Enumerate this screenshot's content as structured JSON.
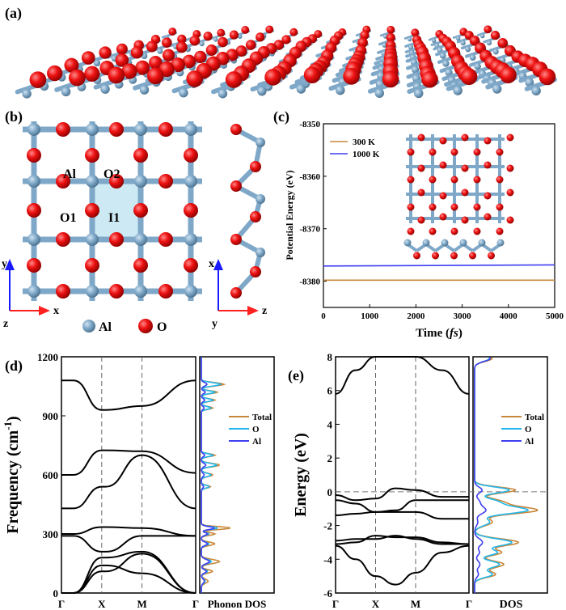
{
  "panels": {
    "a": "(a)",
    "b": "(b)",
    "c": "(c)",
    "d": "(d)",
    "e": "(e)"
  },
  "structure_b": {
    "site_labels": {
      "al": "Al",
      "o2": "O2",
      "o1": "O1",
      "i1": "I1"
    },
    "legend": {
      "al": "Al",
      "o": "O"
    },
    "axes_top": {
      "vertical": "y",
      "horizontal": "x",
      "origin": "z"
    },
    "axes_side": {
      "vertical": "x",
      "horizontal": "z",
      "origin": "y"
    },
    "colors": {
      "al": "#7fa8c8",
      "o": "#e8141b",
      "cell": "#cdeaf4"
    }
  },
  "chart_data": [
    {
      "panel": "c",
      "type": "line",
      "xlabel": "Time (fs)",
      "ylabel": "Potential Energy (eV)",
      "xlim": [
        0,
        5000
      ],
      "ylim": [
        -8385,
        -8350
      ],
      "xticks": [
        0,
        1000,
        2000,
        3000,
        4000,
        5000
      ],
      "yticks": [
        -8350,
        -8360,
        -8370,
        -8380
      ],
      "series": [
        {
          "name": "300 K",
          "color": "#c8873a",
          "x": [
            0,
            5000
          ],
          "y": [
            -8379.8,
            -8379.8
          ]
        },
        {
          "name": "1000 K",
          "color": "#3f3ff0",
          "x": [
            0,
            5000
          ],
          "y": [
            -8377.1,
            -8376.9
          ]
        }
      ],
      "legend_position": "top-left"
    },
    {
      "panel": "d",
      "type": "line",
      "ylabel": "Frequency (cm-1)",
      "ylabel_parts": {
        "main": "Frequency (cm",
        "sup": "-1",
        "end": ")"
      },
      "ylim": [
        0,
        1200
      ],
      "yticks": [
        0,
        300,
        600,
        900,
        1200
      ],
      "xtick_labels": [
        "Γ",
        "X",
        "M",
        "Γ"
      ],
      "dos_label": "Phonon DOS",
      "legend": [
        "Total",
        "O",
        "Al"
      ],
      "series_colors": {
        "Total": "#c8873a",
        "O": "#22b7ea",
        "Al": "#3f3ff0"
      },
      "band_segments": [
        {
          "segment": "Γ-X",
          "start": 1080,
          "end": 930
        },
        {
          "segment": "Γ-X",
          "start": 600,
          "end": 725
        },
        {
          "segment": "Γ-X",
          "start": 430,
          "end": 540
        },
        {
          "segment": "Γ-X",
          "start": 300,
          "end": 335
        },
        {
          "segment": "Γ-X",
          "start": 290,
          "end": 210
        },
        {
          "segment": "Γ-X",
          "start": 0,
          "end": 180
        },
        {
          "segment": "Γ-X",
          "start": 0,
          "end": 110
        }
      ]
    },
    {
      "panel": "e",
      "type": "line",
      "ylabel": "Energy (eV)",
      "ylim": [
        -6,
        8
      ],
      "yticks": [
        -6,
        -4,
        -2,
        0,
        2,
        4,
        6,
        8
      ],
      "xtick_labels": [
        "Γ",
        "X",
        "M",
        "Γ"
      ],
      "dos_label": "DOS",
      "legend": [
        "Total",
        "O",
        "Al"
      ],
      "series_colors": {
        "Total": "#c8873a",
        "O": "#22b7ea",
        "Al": "#3f3ff0"
      },
      "fermi_level": 0
    }
  ]
}
